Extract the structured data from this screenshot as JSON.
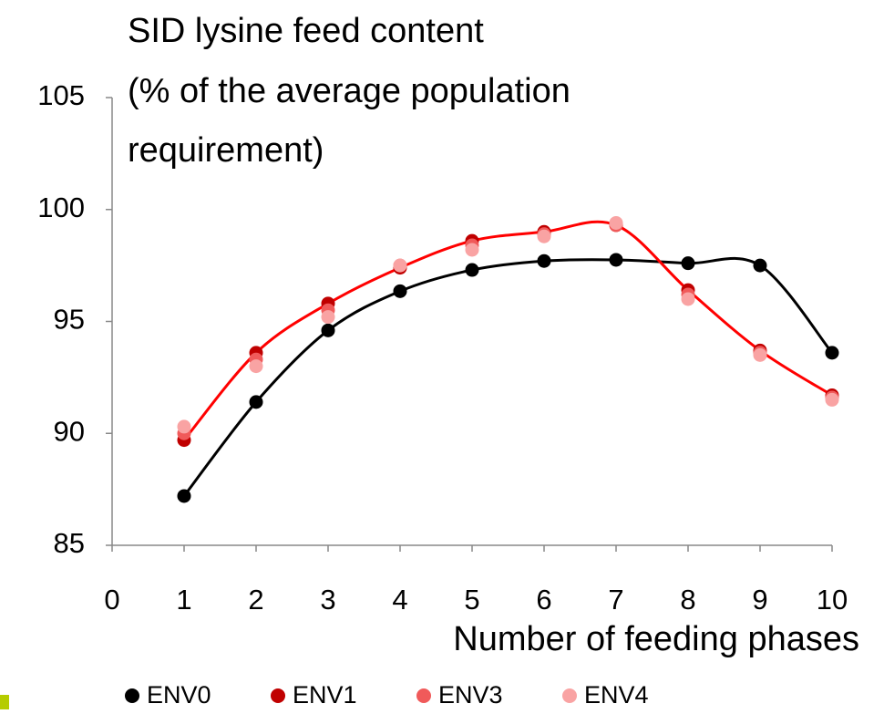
{
  "chart_data": {
    "type": "scatter",
    "title": [
      "SID lysine feed content",
      "(% of the average population",
      "requirement)"
    ],
    "x_label": "Number of feeding phases",
    "x": [
      1,
      2,
      3,
      4,
      5,
      6,
      7,
      8,
      9,
      10
    ],
    "series": [
      {
        "name": "ENV0",
        "color": "#000000",
        "line": true,
        "values": [
          87.2,
          91.4,
          94.6,
          96.35,
          97.3,
          97.7,
          97.75,
          97.6,
          97.5,
          93.6
        ]
      },
      {
        "name": "ENV1",
        "color": "#c00000",
        "line": true,
        "line_color": "#ff0000",
        "values": [
          89.7,
          93.6,
          95.8,
          97.4,
          98.6,
          99.0,
          99.3,
          96.4,
          93.7,
          91.7
        ]
      },
      {
        "name": "ENV3",
        "color": "#f05a5a",
        "values": [
          90.0,
          93.3,
          95.5,
          97.5,
          98.4,
          98.9,
          99.3,
          96.2,
          93.6,
          91.6
        ]
      },
      {
        "name": "ENV4",
        "color": "#f9a3a3",
        "values": [
          90.3,
          93.0,
          95.2,
          97.5,
          98.2,
          98.8,
          99.4,
          96.0,
          93.5,
          91.5
        ]
      }
    ],
    "xlim": [
      0,
      10
    ],
    "xticks": [
      0,
      1,
      2,
      3,
      4,
      5,
      6,
      7,
      8,
      9,
      10
    ],
    "ylim": [
      85,
      105
    ],
    "yticks": [
      85,
      90,
      95,
      100,
      105
    ],
    "smooth": true,
    "grid": false,
    "legend": "bottom"
  }
}
